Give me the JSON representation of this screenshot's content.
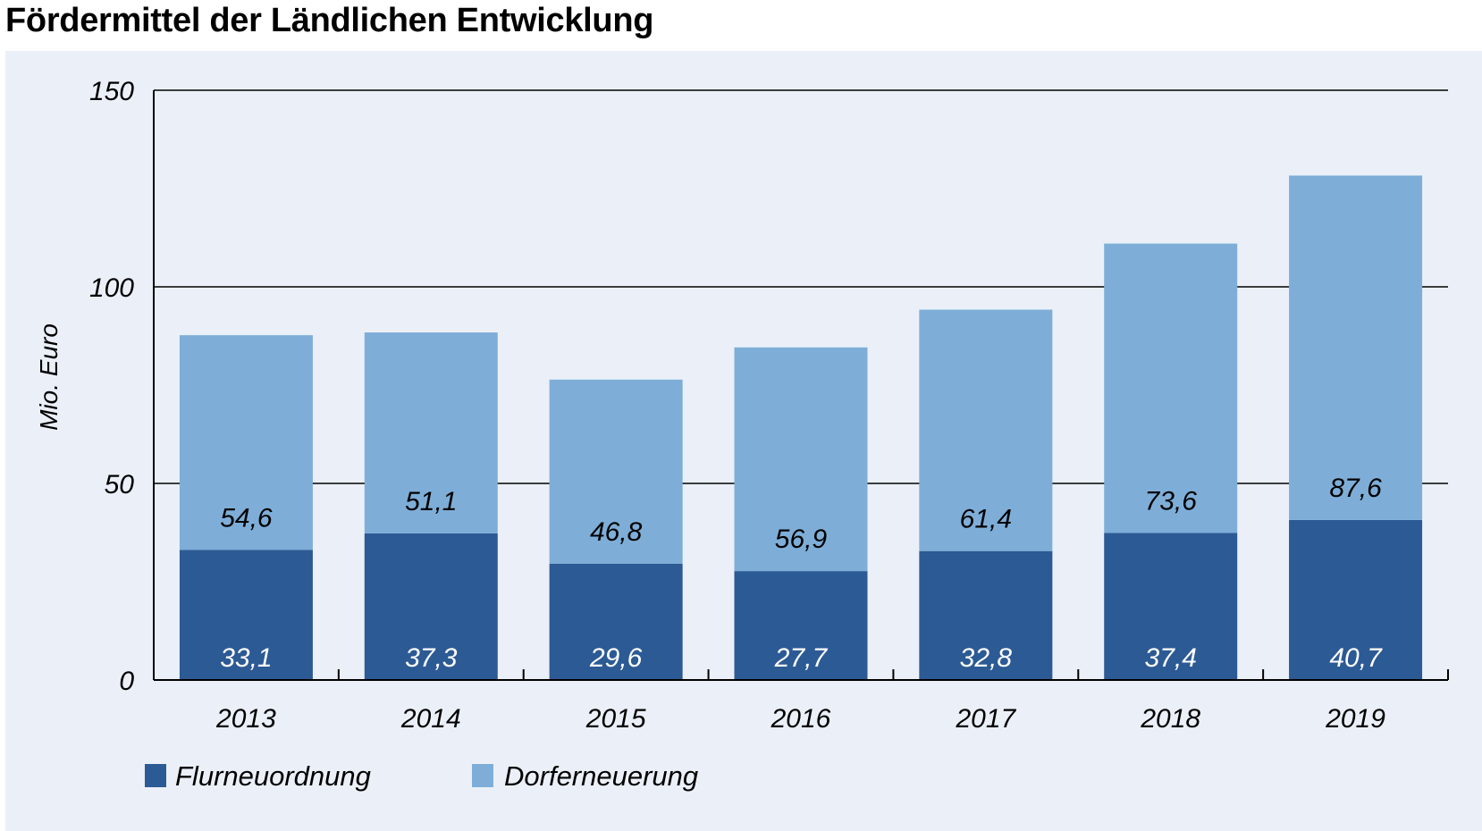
{
  "title": "Fördermittel der Ländlichen Entwicklung",
  "chart_data": {
    "type": "bar",
    "stacked": true,
    "categories": [
      "2013",
      "2014",
      "2015",
      "2016",
      "2017",
      "2018",
      "2019"
    ],
    "series": [
      {
        "name": "Flurneuordnung",
        "values": [
          33.1,
          37.3,
          29.6,
          27.7,
          32.8,
          37.4,
          40.7
        ],
        "labels": [
          "33,1",
          "37,3",
          "29,6",
          "27,7",
          "32,8",
          "37,4",
          "40,7"
        ],
        "color": "#2c5a94"
      },
      {
        "name": "Dorferneuerung",
        "values": [
          54.6,
          51.1,
          46.8,
          56.9,
          61.4,
          73.6,
          87.6
        ],
        "labels": [
          "54,6",
          "51,1",
          "46,8",
          "56,9",
          "61,4",
          "73,6",
          "87,6"
        ],
        "color": "#7eaed8"
      }
    ],
    "ylabel": "Mio. Euro",
    "ylim": [
      0,
      150
    ],
    "yticks": [
      0,
      50,
      100,
      150
    ],
    "grid": true,
    "legend": "bottom-left"
  },
  "colors": {
    "background": "#ebf0f8",
    "dark": "#2c5a94",
    "light": "#7eaed8",
    "grid": "#000000"
  }
}
